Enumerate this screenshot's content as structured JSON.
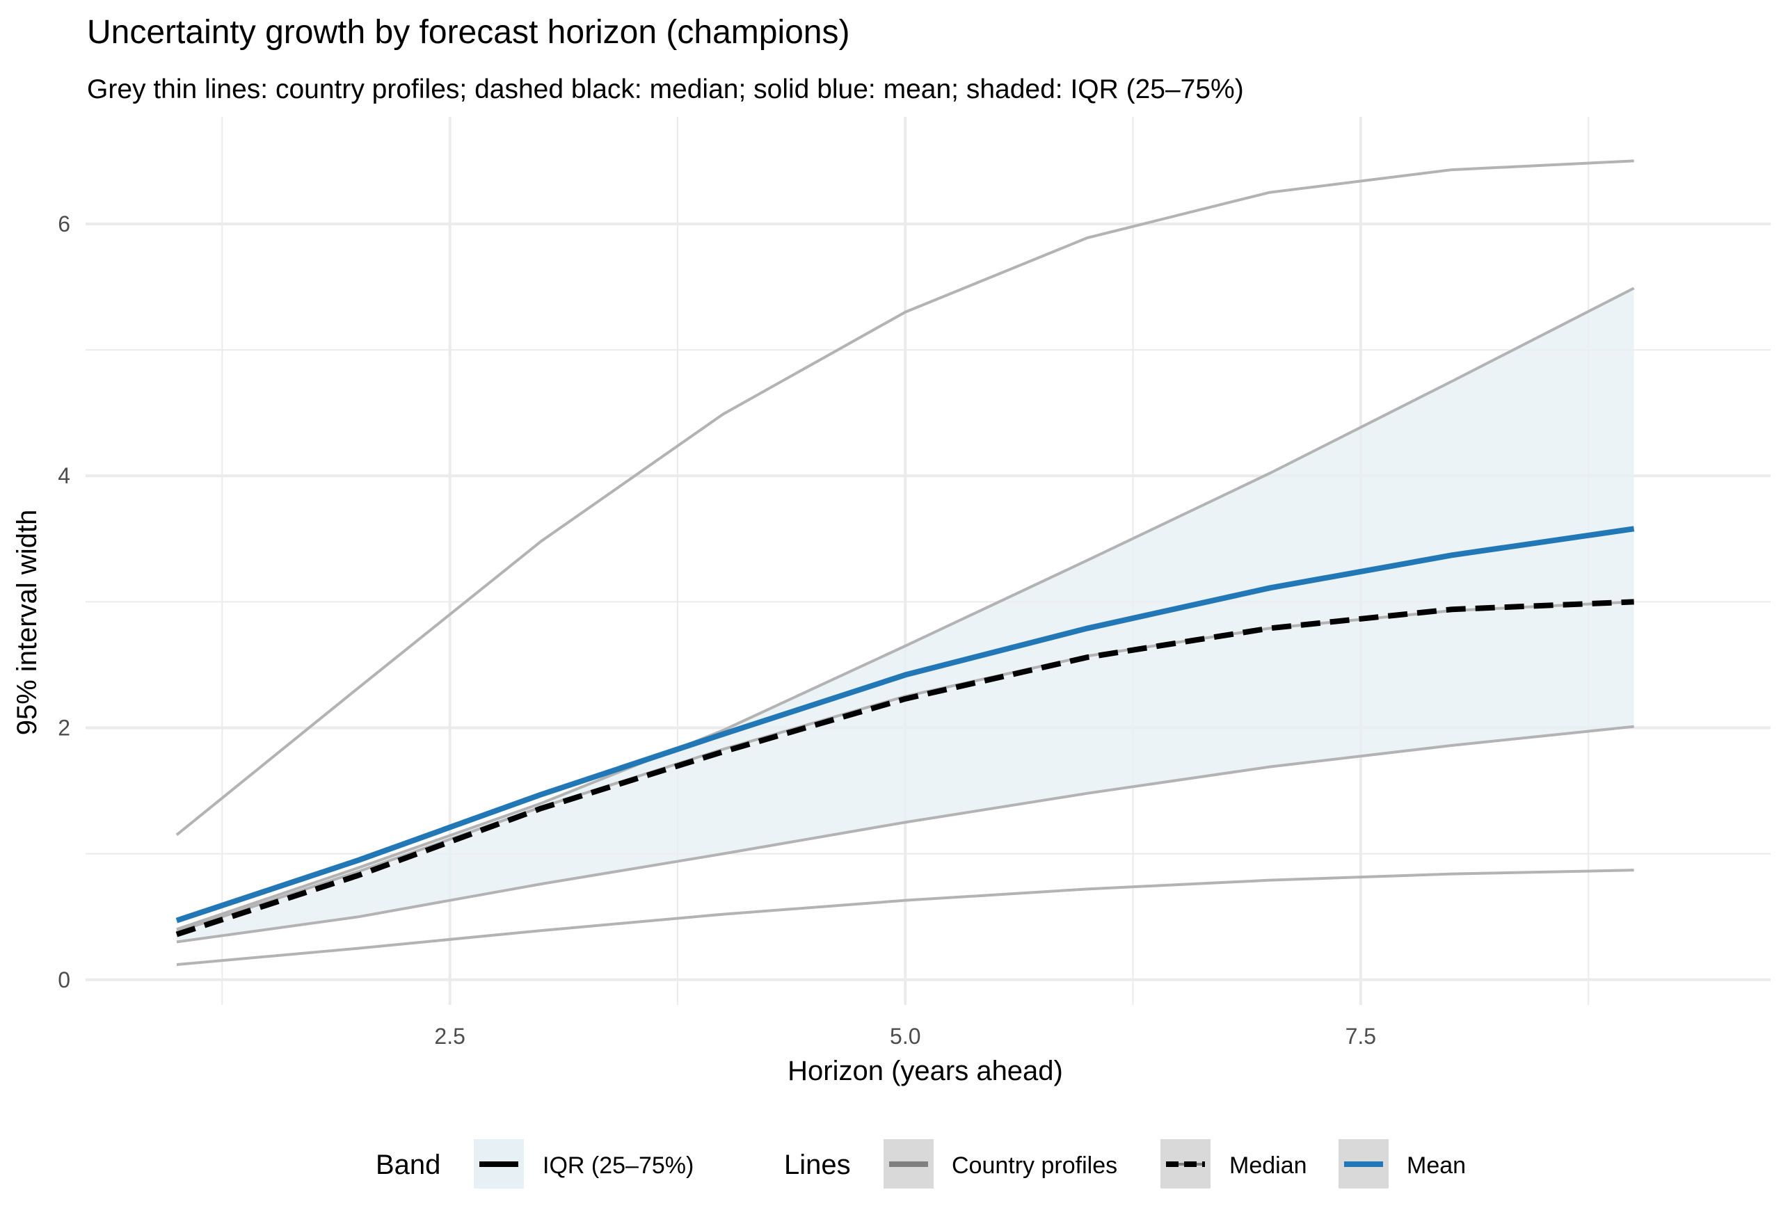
{
  "chart_data": {
    "type": "line",
    "title": "Uncertainty growth by forecast horizon (champions)",
    "subtitle": "Grey thin lines: country profiles; dashed black: median; solid blue: mean; shaded: IQR (25–75%)",
    "xlabel": "Horizon (years ahead)",
    "ylabel": "95% interval width",
    "xlim": [
      0.5,
      9.75
    ],
    "ylim": [
      -0.2,
      6.85
    ],
    "x_ticks": [
      2.5,
      5.0,
      7.5
    ],
    "x_tick_labels": [
      "2.5",
      "5.0",
      "7.5"
    ],
    "y_ticks": [
      0,
      2,
      4,
      6
    ],
    "y_tick_labels": [
      "0",
      "2",
      "4",
      "6"
    ],
    "grid": true,
    "legend_position": "bottom",
    "x": [
      1,
      2,
      3,
      4,
      5,
      6,
      7,
      8,
      9
    ],
    "iqr_band": {
      "lower": [
        0.3,
        0.5,
        0.76,
        1.0,
        1.25,
        1.48,
        1.69,
        1.86,
        2.01
      ],
      "upper": [
        0.4,
        0.89,
        1.4,
        1.98,
        2.65,
        3.33,
        4.02,
        4.75,
        5.49
      ]
    },
    "profiles": [
      {
        "values": [
          1.15,
          2.32,
          3.48,
          4.49,
          5.3,
          5.89,
          6.25,
          6.43,
          6.5
        ]
      },
      {
        "values": [
          0.4,
          0.89,
          1.4,
          1.98,
          2.65,
          3.33,
          4.02,
          4.75,
          5.49
        ]
      },
      {
        "values": [
          0.38,
          0.86,
          1.37,
          1.83,
          2.25,
          2.57,
          2.79,
          2.93,
          3.0
        ]
      },
      {
        "values": [
          0.3,
          0.5,
          0.76,
          1.0,
          1.25,
          1.48,
          1.69,
          1.86,
          2.01
        ]
      },
      {
        "values": [
          0.12,
          0.25,
          0.39,
          0.52,
          0.63,
          0.72,
          0.79,
          0.84,
          0.87
        ]
      }
    ],
    "median": [
      0.36,
      0.83,
      1.36,
      1.81,
      2.23,
      2.56,
      2.79,
      2.94,
      3.0
    ],
    "mean": [
      0.47,
      0.95,
      1.47,
      1.95,
      2.42,
      2.79,
      3.11,
      3.37,
      3.58
    ],
    "legend": {
      "band_title": "Band",
      "band_label": "IQR (25–75%)",
      "lines_title": "Lines",
      "profiles_label": "Country profiles",
      "median_label": "Median",
      "mean_label": "Mean"
    },
    "colors": {
      "profile": "#b3b3b3",
      "median": "#000000",
      "mean": "#2278b6",
      "band": "#e7f0f5",
      "grid": "#ebebeb",
      "legend_key_bg": "#d9d9d9"
    }
  }
}
